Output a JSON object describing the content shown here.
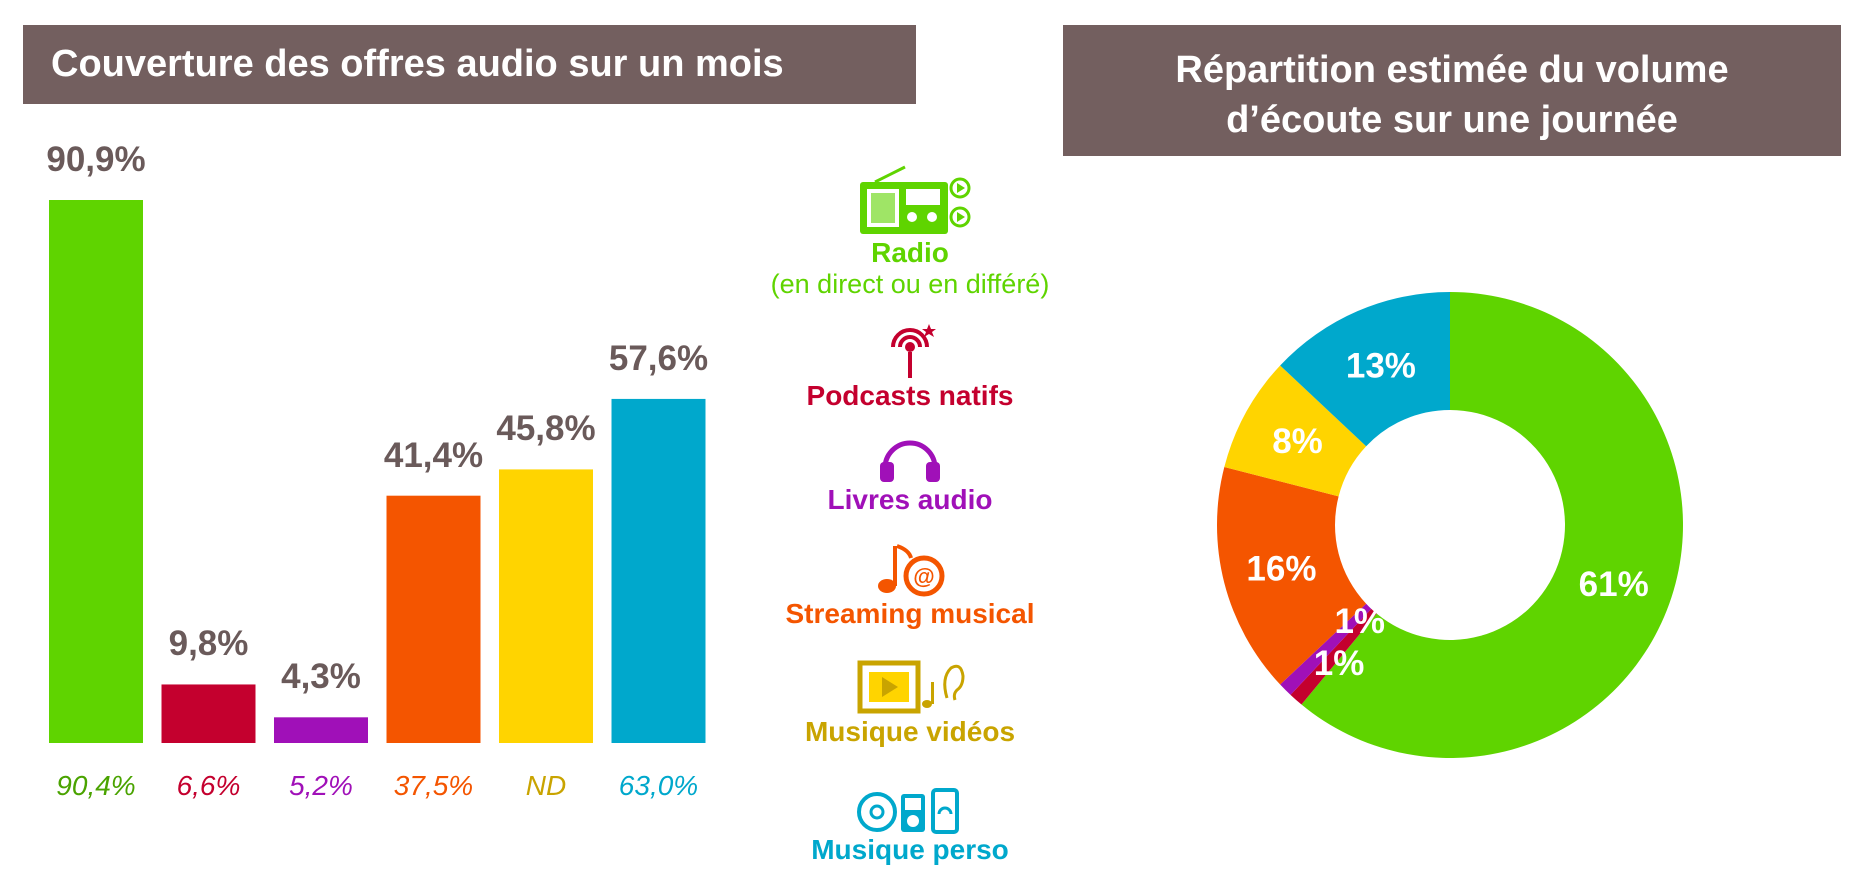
{
  "left_title": "Couverture des offres audio sur un mois",
  "right_title_line1": "Répartition estimée du volume",
  "right_title_line2": "d’écoute sur une journée",
  "colors": {
    "header_bg": "#735f5f",
    "value_text": "#6a5a5a",
    "radio": "#5fd400",
    "podcasts": "#c4002e",
    "livres": "#a010b8",
    "streaming": "#f45500",
    "videos": "#ffd400",
    "videos_text": "#c9a400",
    "perso": "#00a8cc"
  },
  "legend": [
    {
      "name": "Radio",
      "sub": "(en direct ou en différé)",
      "icon": "radio-icon"
    },
    {
      "name": "Podcasts natifs",
      "icon": "podcast-antenna-icon"
    },
    {
      "name": "Livres audio",
      "icon": "headphones-icon"
    },
    {
      "name": "Streaming musical",
      "icon": "music-streaming-icon"
    },
    {
      "name": "Musique vidéos",
      "icon": "music-video-icon"
    },
    {
      "name": "Musique perso",
      "icon": "personal-music-devices-icon"
    }
  ],
  "chart_data": [
    {
      "type": "bar",
      "title": "Couverture des offres audio sur un mois",
      "categories": [
        "Radio",
        "Podcasts natifs",
        "Livres audio",
        "Streaming musical",
        "Musique vidéos",
        "Musique perso"
      ],
      "values": [
        90.9,
        9.8,
        4.3,
        41.4,
        45.8,
        57.6
      ],
      "value_labels": [
        "90,9%",
        "9,8%",
        "4,3%",
        "41,4%",
        "45,8%",
        "57,6%"
      ],
      "secondary_labels": [
        "90,4%",
        "6,6%",
        "5,2%",
        "37,5%",
        "ND",
        "63,0%"
      ],
      "ylim": [
        0,
        100
      ]
    },
    {
      "type": "pie",
      "title": "Répartition estimée du volume d’écoute sur une journée",
      "categories": [
        "Radio",
        "Podcasts natifs",
        "Livres audio",
        "Streaming musical",
        "Musique vidéos",
        "Musique perso"
      ],
      "values": [
        61,
        1,
        1,
        16,
        8,
        13
      ],
      "value_labels": [
        "61%",
        "1%",
        "1%",
        "16%",
        "8%",
        "13%"
      ],
      "donut": true
    }
  ]
}
